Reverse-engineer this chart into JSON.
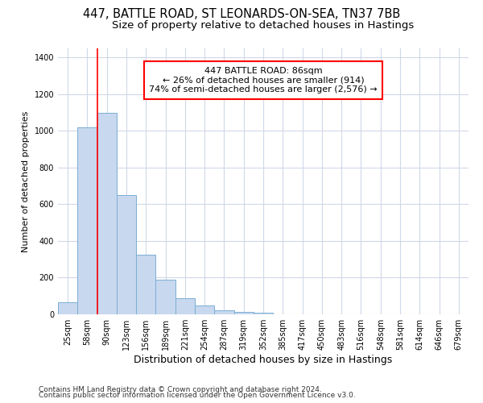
{
  "title_line1": "447, BATTLE ROAD, ST LEONARDS-ON-SEA, TN37 7BB",
  "title_line2": "Size of property relative to detached houses in Hastings",
  "xlabel": "Distribution of detached houses by size in Hastings",
  "ylabel": "Number of detached properties",
  "bar_color": "#c8d8ee",
  "bar_edge_color": "#7aaed4",
  "categories": [
    "25sqm",
    "58sqm",
    "90sqm",
    "123sqm",
    "156sqm",
    "189sqm",
    "221sqm",
    "254sqm",
    "287sqm",
    "319sqm",
    "352sqm",
    "385sqm",
    "417sqm",
    "450sqm",
    "483sqm",
    "516sqm",
    "548sqm",
    "581sqm",
    "614sqm",
    "646sqm",
    "679sqm"
  ],
  "values": [
    65,
    1020,
    1100,
    650,
    325,
    190,
    90,
    50,
    20,
    12,
    10,
    0,
    0,
    0,
    0,
    0,
    0,
    0,
    0,
    0,
    0
  ],
  "ylim": [
    0,
    1450
  ],
  "yticks": [
    0,
    200,
    400,
    600,
    800,
    1000,
    1200,
    1400
  ],
  "annotation_title": "447 BATTLE ROAD: 86sqm",
  "annotation_line2": "← 26% of detached houses are smaller (914)",
  "annotation_line3": "74% of semi-detached houses are larger (2,576) →",
  "annotation_box_color": "white",
  "annotation_box_edge_color": "red",
  "vline_color": "red",
  "vline_x": 1.5,
  "footnote1": "Contains HM Land Registry data © Crown copyright and database right 2024.",
  "footnote2": "Contains public sector information licensed under the Open Government Licence v3.0.",
  "background_color": "white",
  "grid_color": "#d0d8e8",
  "title_fontsize": 10.5,
  "subtitle_fontsize": 9.5,
  "ylabel_fontsize": 8,
  "xlabel_fontsize": 9,
  "tick_fontsize": 7,
  "annotation_fontsize": 8,
  "footnote_fontsize": 6.5
}
